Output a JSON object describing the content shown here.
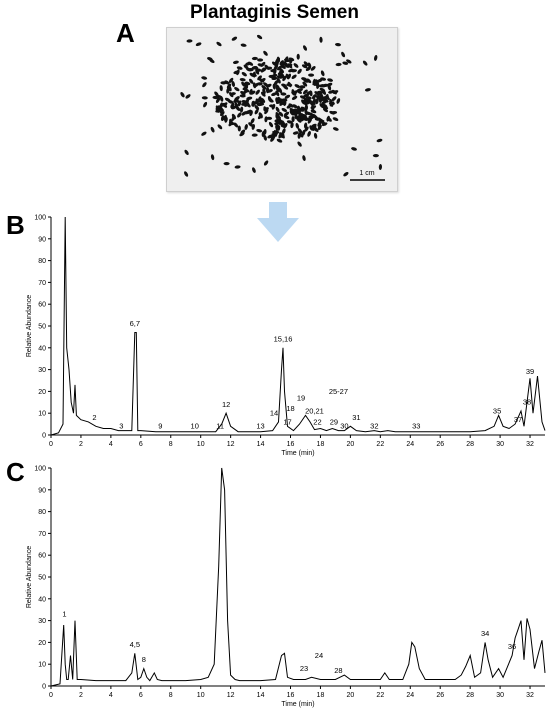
{
  "panel_a": {
    "letter": "A",
    "title": "Plantaginis Semen",
    "scale_label": "1 cm"
  },
  "arrow": {
    "icon": "down-arrow-icon",
    "color": "#bcd9f2"
  },
  "chart_data": [
    {
      "type": "line",
      "panel": "B",
      "xlabel": "Time (min)",
      "ylabel": "Relative Abundance",
      "xlim": [
        0,
        33
      ],
      "ylim": [
        0,
        100
      ],
      "x_ticks": [
        0,
        2,
        4,
        6,
        8,
        10,
        12,
        14,
        16,
        18,
        20,
        22,
        24,
        26,
        28,
        30,
        32
      ],
      "y_ticks": [
        0,
        10,
        20,
        30,
        40,
        50,
        60,
        70,
        80,
        90,
        100
      ],
      "series": [
        {
          "x": [
            0,
            0.5,
            0.8,
            0.95,
            1.05,
            1.2,
            1.35,
            1.5,
            1.6,
            1.7,
            2.0,
            2.5,
            3.0,
            3.5,
            4.0,
            4.5,
            5.0,
            5.4,
            5.6,
            5.7,
            5.8,
            6.0,
            7,
            8,
            9,
            10,
            11,
            11.4,
            11.7,
            12.0,
            12.5,
            13,
            14,
            14.8,
            15.2,
            15.4,
            15.5,
            15.6,
            15.8,
            16.2,
            16.6,
            17.0,
            17.3,
            17.6,
            18.0,
            18.4,
            18.8,
            19.2,
            19.6,
            20.0,
            20.4,
            21,
            21.6,
            22,
            22.5,
            23,
            24,
            25,
            26,
            27,
            28,
            29,
            29.6,
            29.9,
            30.2,
            30.6,
            31.0,
            31.4,
            31.6,
            31.8,
            32.0,
            32.2,
            32.5,
            32.8,
            33.0
          ],
          "y": [
            0,
            1,
            5,
            100,
            40,
            30,
            15,
            10,
            23,
            9,
            7,
            6,
            4,
            3,
            3,
            2,
            2,
            2,
            47,
            47,
            2,
            2,
            1.5,
            1.5,
            1.5,
            1.5,
            1.5,
            5,
            10,
            4,
            1.5,
            1.5,
            1.5,
            2,
            6,
            30,
            40,
            20,
            4,
            2,
            5,
            9,
            6,
            2.5,
            3,
            2,
            3,
            2,
            2,
            4,
            2,
            1.5,
            2,
            1.5,
            2,
            1.5,
            1.5,
            1.5,
            1.5,
            1.5,
            1.5,
            2,
            4,
            9,
            4,
            3,
            5,
            11,
            4,
            15,
            26,
            10,
            27,
            6,
            2
          ]
        }
      ],
      "annotations": [
        {
          "label": "2",
          "x": 2.9,
          "y": 6
        },
        {
          "label": "3",
          "x": 4.7,
          "y": 2
        },
        {
          "label": "6,7",
          "x": 5.6,
          "y": 49
        },
        {
          "label": "9",
          "x": 7.3,
          "y": 2
        },
        {
          "label": "10",
          "x": 9.6,
          "y": 2
        },
        {
          "label": "11",
          "x": 11.3,
          "y": 2
        },
        {
          "label": "12",
          "x": 11.7,
          "y": 12
        },
        {
          "label": "13",
          "x": 14.0,
          "y": 2
        },
        {
          "label": "14",
          "x": 14.9,
          "y": 8
        },
        {
          "label": "15,16",
          "x": 15.5,
          "y": 42
        },
        {
          "label": "17",
          "x": 15.8,
          "y": 4
        },
        {
          "label": "18",
          "x": 16.0,
          "y": 10
        },
        {
          "label": "19",
          "x": 16.7,
          "y": 15
        },
        {
          "label": "20,21",
          "x": 17.6,
          "y": 9
        },
        {
          "label": "22",
          "x": 17.8,
          "y": 4
        },
        {
          "label": "25-27",
          "x": 19.2,
          "y": 18
        },
        {
          "label": "29",
          "x": 18.9,
          "y": 4
        },
        {
          "label": "30",
          "x": 19.6,
          "y": 2
        },
        {
          "label": "31",
          "x": 20.4,
          "y": 6
        },
        {
          "label": "32",
          "x": 21.6,
          "y": 2
        },
        {
          "label": "33",
          "x": 24.4,
          "y": 2
        },
        {
          "label": "35",
          "x": 29.8,
          "y": 9
        },
        {
          "label": "37",
          "x": 31.2,
          "y": 5
        },
        {
          "label": "38",
          "x": 31.8,
          "y": 13
        },
        {
          "label": "39",
          "x": 32.0,
          "y": 27
        }
      ]
    },
    {
      "type": "line",
      "panel": "C",
      "xlabel": "Time (min)",
      "ylabel": "Relative Abundance",
      "xlim": [
        0,
        33
      ],
      "ylim": [
        0,
        100
      ],
      "x_ticks": [
        0,
        2,
        4,
        6,
        8,
        10,
        12,
        14,
        16,
        18,
        20,
        22,
        24,
        26,
        28,
        30,
        32
      ],
      "y_ticks": [
        0,
        10,
        20,
        30,
        40,
        50,
        60,
        70,
        80,
        90,
        100
      ],
      "series": [
        {
          "x": [
            0,
            0.6,
            0.85,
            0.95,
            1.05,
            1.15,
            1.3,
            1.45,
            1.6,
            1.75,
            2.0,
            3,
            4,
            5,
            5.4,
            5.6,
            5.8,
            6.0,
            6.2,
            6.4,
            6.6,
            6.9,
            7.1,
            7.4,
            8,
            9,
            10,
            10.5,
            10.9,
            11.2,
            11.4,
            11.6,
            11.8,
            12.0,
            12.3,
            12.6,
            13,
            14,
            15,
            15.4,
            15.6,
            15.8,
            16.2,
            17,
            17.4,
            18,
            19,
            19.6,
            20,
            20.4,
            21,
            22,
            22.3,
            22.6,
            23,
            23.5,
            23.9,
            24.1,
            24.3,
            24.6,
            25,
            26,
            27,
            27.4,
            27.7,
            28.0,
            28.3,
            28.7,
            29.0,
            29.2,
            29.5,
            29.9,
            30.2,
            30.5,
            30.8,
            31.0,
            31.2,
            31.4,
            31.6,
            31.8,
            32.0,
            32.3,
            32.6,
            32.8,
            33.0
          ],
          "y": [
            0,
            1,
            28,
            10,
            3,
            3,
            14,
            3,
            30,
            3,
            3,
            2.5,
            2.5,
            2.5,
            6,
            15,
            3,
            4,
            8,
            4,
            2.5,
            6,
            3,
            2.5,
            2.5,
            2.5,
            3,
            4,
            10,
            55,
            100,
            90,
            30,
            5,
            3,
            2.5,
            2.5,
            2.5,
            3,
            14,
            15,
            4,
            3,
            3,
            4,
            3,
            3,
            5,
            3,
            3,
            3,
            3,
            6,
            3,
            3,
            3,
            10,
            20,
            18,
            8,
            3,
            3,
            3,
            5,
            9,
            14,
            4,
            6,
            20,
            12,
            4,
            8,
            4,
            9,
            14,
            22,
            26,
            30,
            12,
            31,
            26,
            8,
            16,
            21,
            6
          ]
        }
      ],
      "annotations": [
        {
          "label": "1",
          "x": 0.9,
          "y": 31
        },
        {
          "label": "4,5",
          "x": 5.6,
          "y": 17
        },
        {
          "label": "8",
          "x": 6.2,
          "y": 10
        },
        {
          "label": "23",
          "x": 16.9,
          "y": 6
        },
        {
          "label": "24",
          "x": 17.9,
          "y": 12
        },
        {
          "label": "28",
          "x": 19.2,
          "y": 5
        },
        {
          "label": "34",
          "x": 29.0,
          "y": 22
        },
        {
          "label": "36",
          "x": 30.8,
          "y": 16
        }
      ]
    }
  ]
}
